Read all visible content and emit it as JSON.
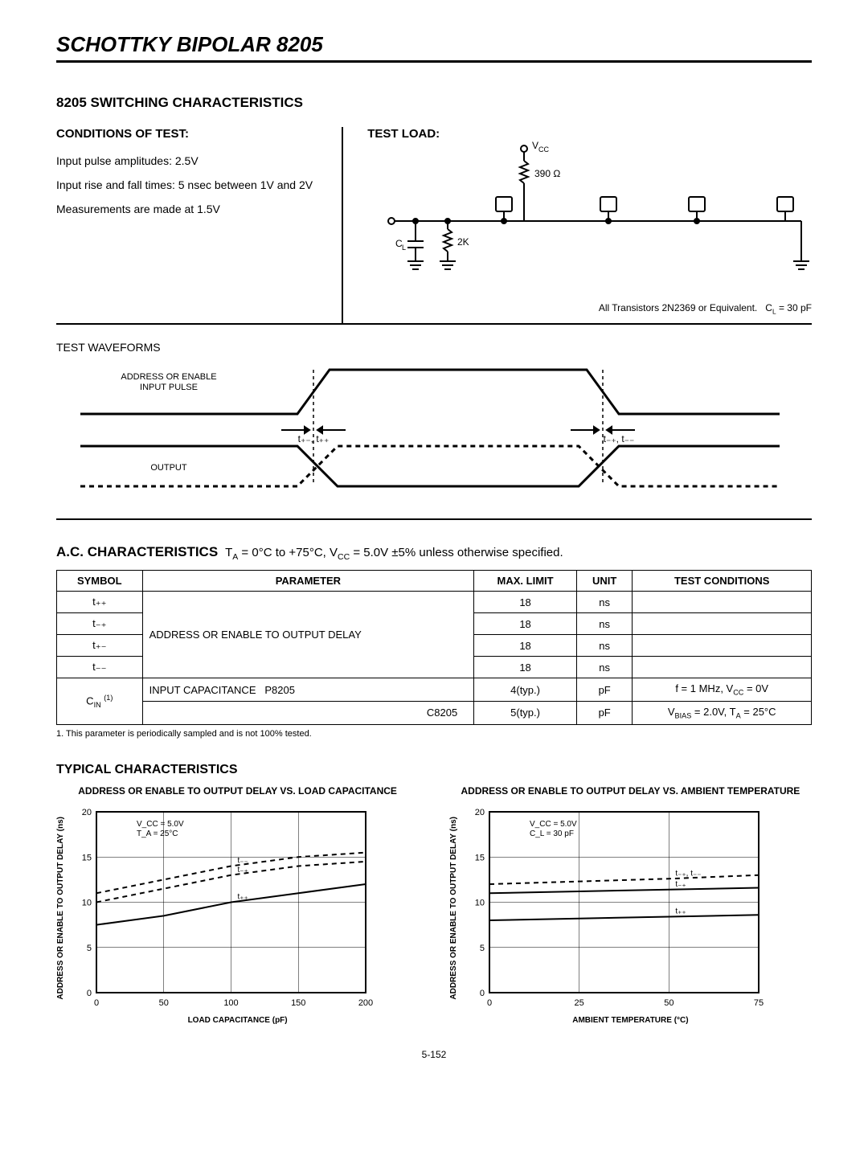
{
  "header": {
    "title": "SCHOTTKY BIPOLAR 8205"
  },
  "switching": {
    "title": "8205 SWITCHING CHARACTERISTICS",
    "conditions_head": "CONDITIONS OF TEST:",
    "cond1": "Input pulse amplitudes: 2.5V",
    "cond2": "Input rise and fall times: 5 nsec between 1V and 2V",
    "cond3": "Measurements are made at 1.5V",
    "testload_label": "TEST LOAD:",
    "vcc_label": "V",
    "vcc_sub": "CC",
    "r390": "390 Ω",
    "r2k": "2K",
    "cl_label": "C",
    "cl_sub": "L",
    "testload_note_a": "All Transistors 2N2369 or Equivalent.",
    "testload_note_b": "C",
    "testload_note_c": "L",
    "testload_note_d": " = 30 pF"
  },
  "waveforms": {
    "title": "TEST WAVEFORMS",
    "input_label1": "ADDRESS OR ENABLE",
    "input_label2": "INPUT PULSE",
    "output_label": "OUTPUT",
    "rise_label": "t₊₋, t₊₊",
    "fall_label": "t₋₊, t₋₋"
  },
  "ac": {
    "title_bold": "A.C. CHARACTERISTICS",
    "title_cond": " T_A = 0°C to +75°C, V_CC = 5.0V ±5% unless otherwise specified.",
    "columns": [
      "SYMBOL",
      "PARAMETER",
      "MAX. LIMIT",
      "UNIT",
      "TEST CONDITIONS"
    ],
    "sym1": "t₊₊",
    "sym2": "t₋₊",
    "sym3": "t₊₋",
    "sym4": "t₋₋",
    "sym5": "C_IN ⁽¹⁾",
    "param_delay": "ADDRESS OR ENABLE TO OUTPUT DELAY",
    "param_cap": "INPUT CAPACITANCE",
    "p8205": "P8205",
    "c8205": "C8205",
    "max18": "18",
    "max4": "4(typ.)",
    "max5": "5(typ.)",
    "unit_ns": "ns",
    "unit_pf": "pF",
    "test_cond1": "f = 1 MHz, V_CC = 0V",
    "test_cond2": "V_BIAS = 2.0V, T_A = 25°C",
    "footnote": "1. This parameter is periodically sampled and is not 100% tested."
  },
  "typical": {
    "title": "TYPICAL CHARACTERISTICS",
    "chart1": {
      "title": "ADDRESS OR ENABLE TO OUTPUT DELAY VS. LOAD CAPACITANCE",
      "ylabel": "ADDRESS OR ENABLE TO OUTPUT DELAY (ns)",
      "xlabel": "LOAD CAPACITANCE (pF)",
      "xlim": [
        0,
        200
      ],
      "ylim": [
        0,
        20
      ],
      "xticks": [
        0,
        50,
        100,
        150,
        200
      ],
      "yticks": [
        0,
        5,
        10,
        15,
        20
      ],
      "legend_a": "V_CC = 5.0V",
      "legend_b": "T_A = 25°C",
      "series": {
        "tmm": {
          "label": "t₋₋",
          "dash": true,
          "points": [
            [
              0,
              11
            ],
            [
              50,
              12.5
            ],
            [
              100,
              14
            ],
            [
              150,
              15
            ],
            [
              200,
              15.5
            ]
          ]
        },
        "tmp": {
          "label": "t₋₊",
          "dash": true,
          "points": [
            [
              0,
              10
            ],
            [
              50,
              11.5
            ],
            [
              100,
              13
            ],
            [
              150,
              14
            ],
            [
              200,
              14.5
            ]
          ]
        },
        "tpp": {
          "label": "t₊₊",
          "dash": false,
          "points": [
            [
              0,
              7.5
            ],
            [
              50,
              8.5
            ],
            [
              100,
              10
            ],
            [
              150,
              11
            ],
            [
              200,
              12
            ]
          ]
        }
      },
      "colors": {
        "line": "#000000",
        "grid": "#000000",
        "bg": "#ffffff"
      }
    },
    "chart2": {
      "title": "ADDRESS OR ENABLE TO OUTPUT DELAY VS. AMBIENT TEMPERATURE",
      "ylabel": "ADDRESS OR ENABLE TO OUTPUT DELAY (ns)",
      "xlabel": "AMBIENT TEMPERATURE (°C)",
      "xlim": [
        0,
        75
      ],
      "ylim": [
        0,
        20
      ],
      "xticks": [
        0,
        25,
        50,
        75
      ],
      "yticks": [
        0,
        5,
        10,
        15,
        20
      ],
      "legend_a": "V_CC = 5.0V",
      "legend_b": "C_L = 30 pF",
      "series": {
        "tmm": {
          "label": "t₋₊, t₋₋",
          "dash": true,
          "points": [
            [
              0,
              12
            ],
            [
              25,
              12.3
            ],
            [
              50,
              12.6
            ],
            [
              75,
              13
            ]
          ]
        },
        "tmp": {
          "label": "t₋₊",
          "dash": false,
          "points": [
            [
              0,
              11
            ],
            [
              25,
              11.2
            ],
            [
              50,
              11.4
            ],
            [
              75,
              11.6
            ]
          ]
        },
        "tpp": {
          "label": "t₊₊",
          "dash": false,
          "points": [
            [
              0,
              8
            ],
            [
              25,
              8.2
            ],
            [
              50,
              8.4
            ],
            [
              75,
              8.6
            ]
          ]
        }
      },
      "colors": {
        "line": "#000000",
        "grid": "#000000",
        "bg": "#ffffff"
      }
    }
  },
  "pagenum": "5-152"
}
